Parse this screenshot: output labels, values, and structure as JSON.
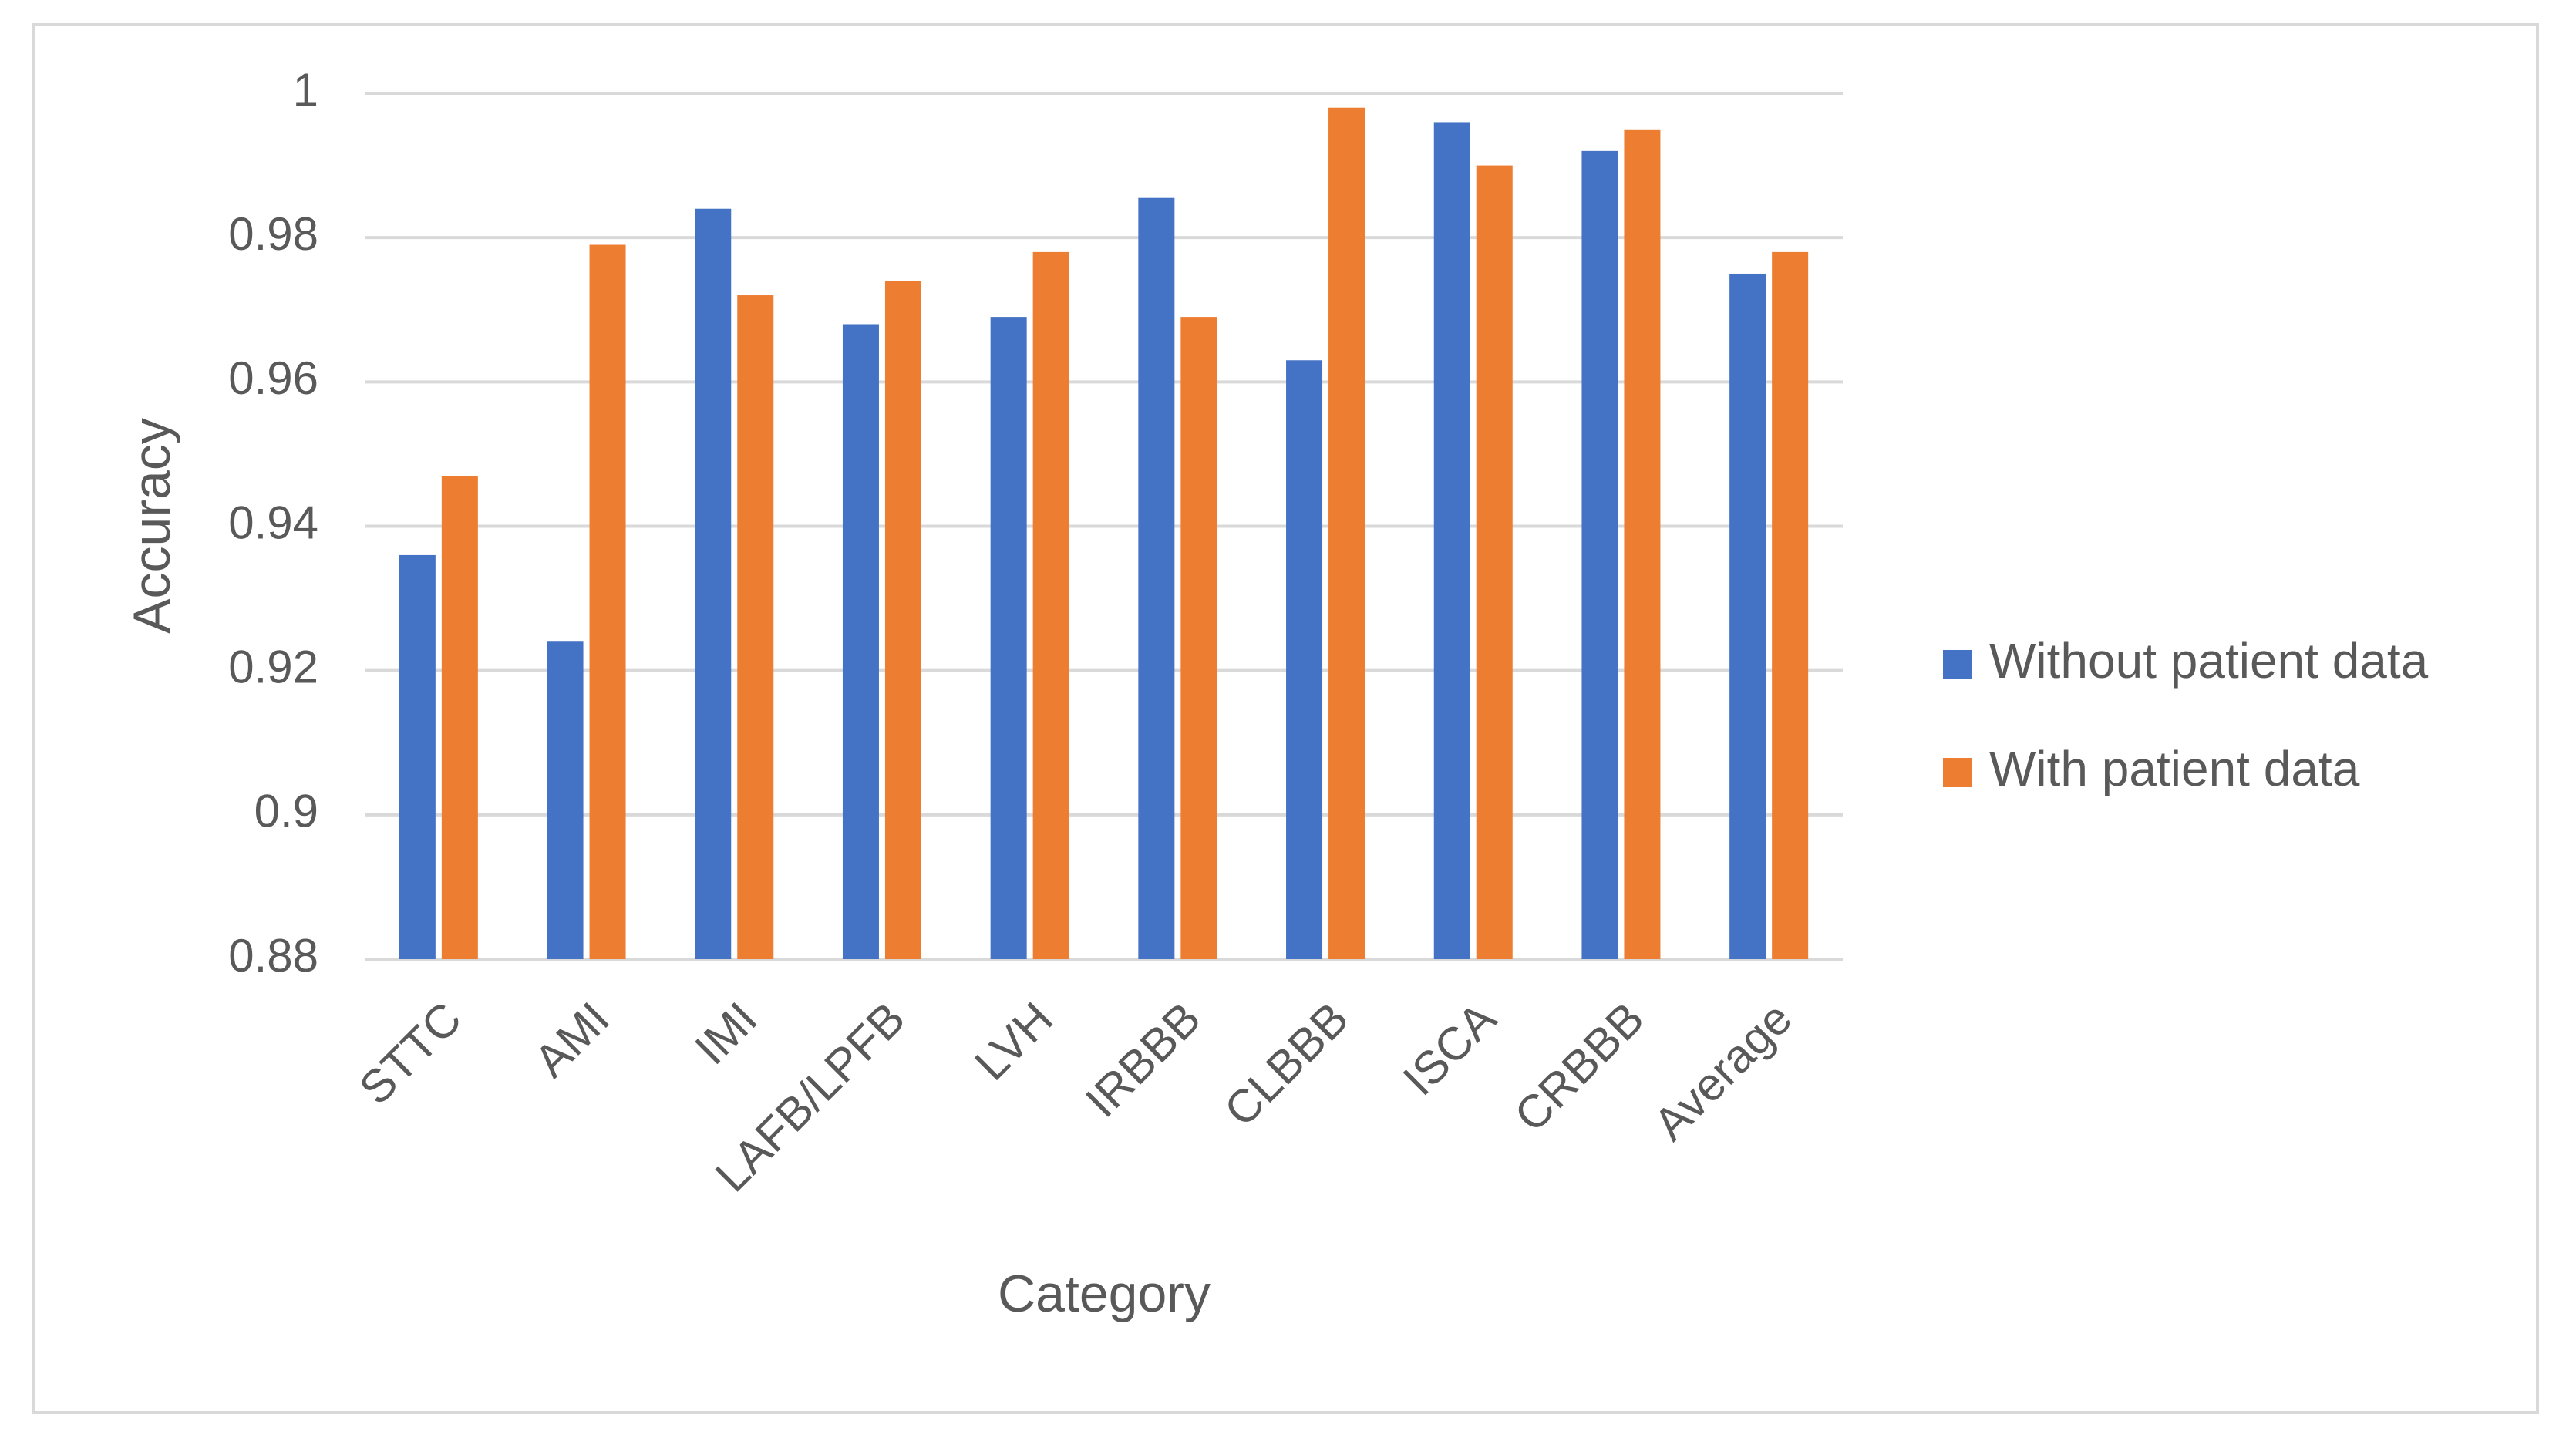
{
  "chart_data": {
    "type": "bar",
    "x_label": "Category",
    "y_label": "Accuracy",
    "categories": [
      "STTC",
      "AMI",
      "IMI",
      "LAFB/LPFB",
      "LVH",
      "IRBBB",
      "CLBBB",
      "ISCA",
      "CRBBB",
      "Average"
    ],
    "series": [
      {
        "name": "Without patient data",
        "color": "#4472c4",
        "values": [
          0.936,
          0.924,
          0.984,
          0.968,
          0.969,
          0.9855,
          0.963,
          0.996,
          0.992,
          0.975
        ]
      },
      {
        "name": "With patient data",
        "color": "#ed7d31",
        "values": [
          0.947,
          0.979,
          0.972,
          0.974,
          0.978,
          0.969,
          0.998,
          0.99,
          0.995,
          0.978
        ]
      }
    ],
    "ylim": [
      0.88,
      1
    ],
    "yticks": [
      0.88,
      0.9,
      0.92,
      0.94,
      0.96,
      0.98,
      1
    ],
    "grid": true,
    "legend": "right"
  }
}
